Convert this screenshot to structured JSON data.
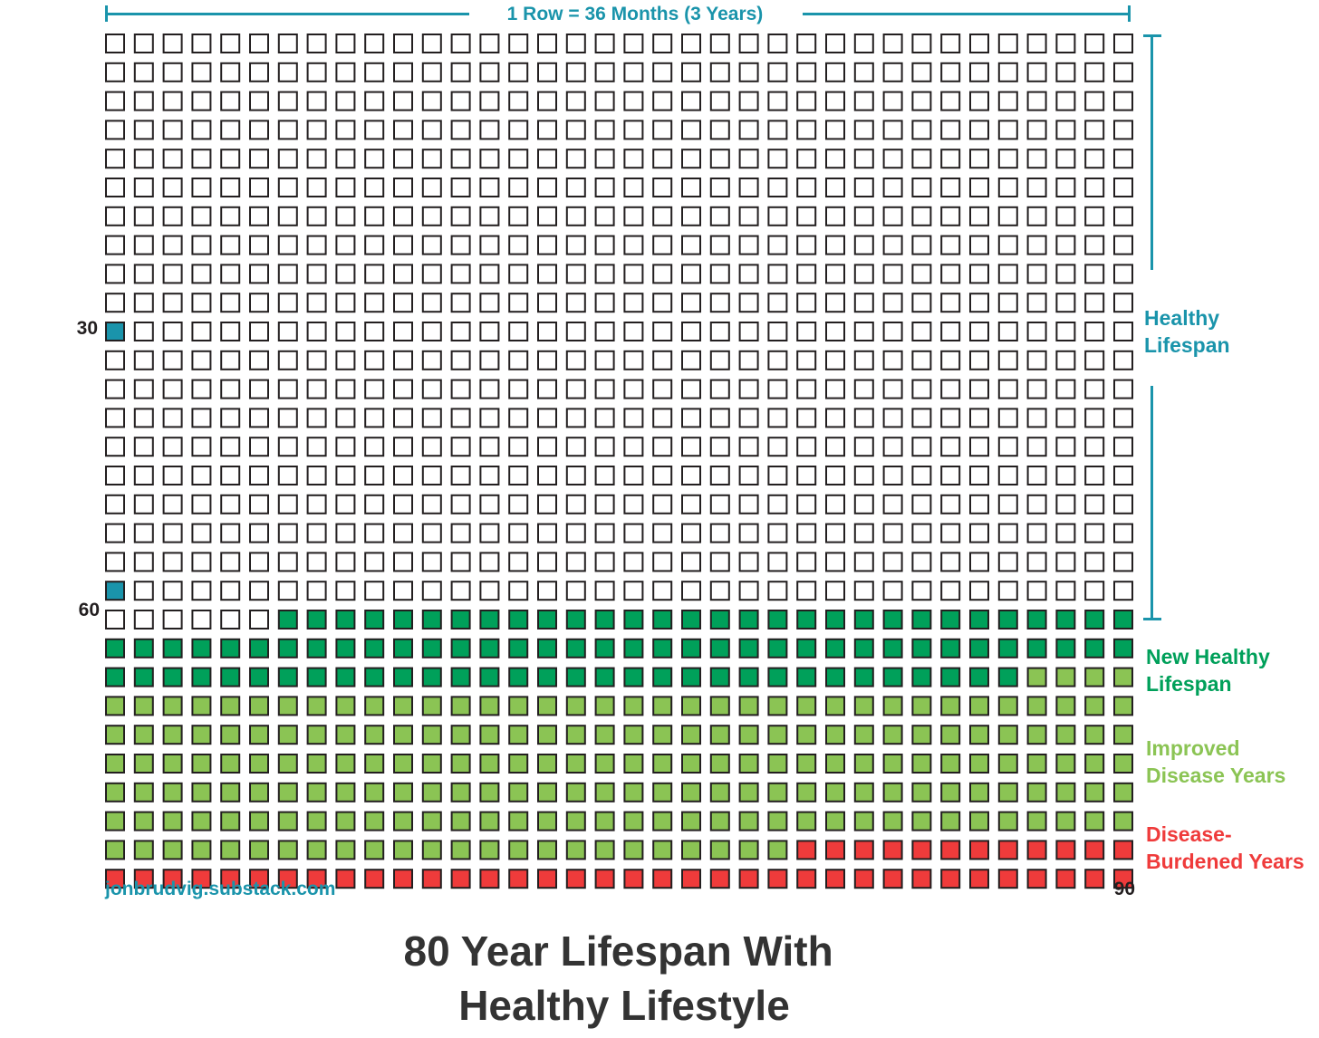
{
  "chart_data": {
    "type": "waffle",
    "scale_label": "1 Row = 36 Months (3 Years)",
    "rows": 30,
    "columns": 36,
    "row_labels": [
      {
        "row": 10,
        "text": "30"
      },
      {
        "row": 19,
        "text": "60"
      },
      {
        "row": 29,
        "text": "90"
      }
    ],
    "markers": [
      {
        "row": 10,
        "col": 0,
        "color": "#1a94ab"
      },
      {
        "row": 19,
        "col": 0,
        "color": "#1a94ab"
      }
    ],
    "categories": [
      {
        "name": "Healthy Lifespan",
        "color": "#ffffff",
        "start_cell": 0,
        "end_cell": 726
      },
      {
        "name": "New Healthy Lifespan",
        "color": "#00a05a",
        "start_cell": 726,
        "end_cell": 824
      },
      {
        "name": "Improved Disease Years",
        "color": "#8bc454",
        "start_cell": 824,
        "end_cell": 1032
      },
      {
        "name": "Disease-Burdened Years",
        "color": "#ef3b3b",
        "start_cell": 1032,
        "end_cell": 1080
      }
    ],
    "legend": [
      {
        "lines": [
          "Healthy",
          "Lifespan"
        ],
        "color": "#1a94ab"
      },
      {
        "lines": [
          "New Healthy",
          "Lifespan"
        ],
        "color": "#00a05a"
      },
      {
        "lines": [
          "Improved",
          "Disease Years"
        ],
        "color": "#8bc454"
      },
      {
        "lines": [
          "Disease-",
          "Burdened Years"
        ],
        "color": "#ef3b3b"
      }
    ],
    "source": "jonbrudvig.substack.com",
    "title_lines": [
      "80 Year Lifespan With",
      "Healthy Lifestyle"
    ]
  }
}
